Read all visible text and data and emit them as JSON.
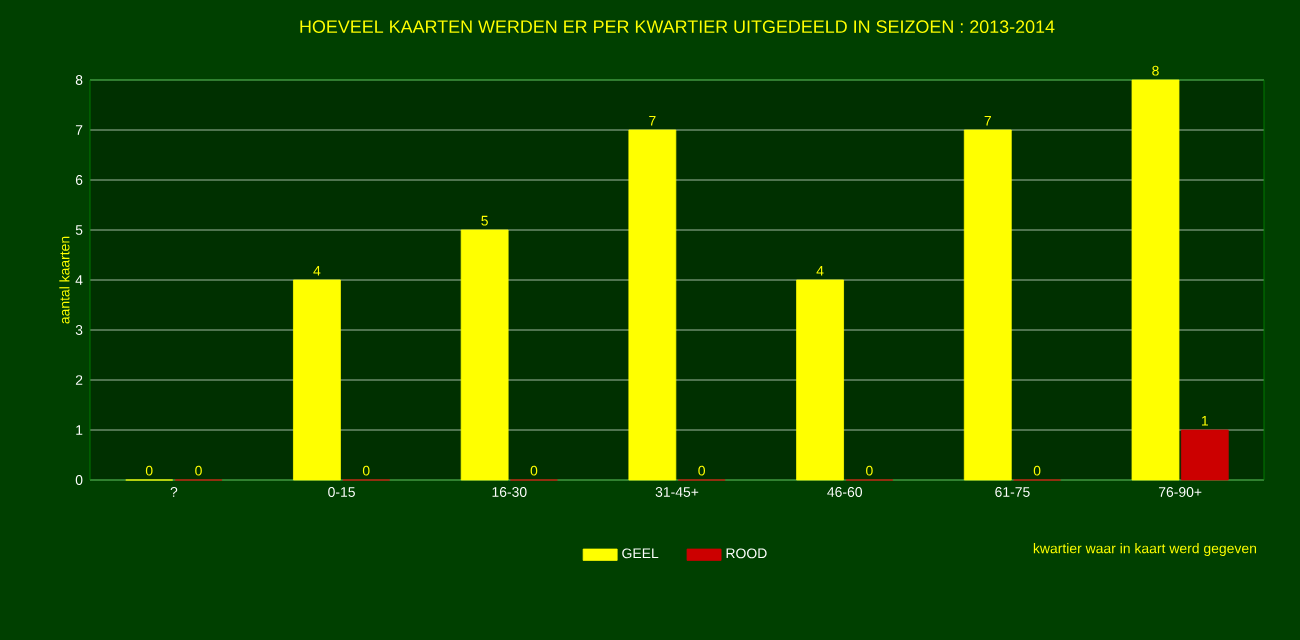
{
  "chart_data": {
    "type": "bar",
    "title": "HOEVEEL KAARTEN WERDEN ER PER KWARTIER UITGEDEELD IN SEIZOEN : 2013-2014",
    "xlabel": "kwartier waar in kaart werd gegeven",
    "ylabel": "aantal kaarten",
    "categories": [
      "?",
      "0-15",
      "16-30",
      "31-45+",
      "46-60",
      "61-75",
      "76-90+"
    ],
    "series": [
      {
        "name": "GEEL",
        "color": "#ffff00",
        "values": [
          0,
          4,
          5,
          7,
          4,
          7,
          8
        ]
      },
      {
        "name": "ROOD",
        "color": "#cc0000",
        "values": [
          0,
          0,
          0,
          0,
          0,
          0,
          1
        ]
      }
    ],
    "ylim": [
      0,
      8
    ],
    "yticks": [
      0,
      1,
      2,
      3,
      4,
      5,
      6,
      7,
      8
    ],
    "grid": "y",
    "legend": "bottom",
    "data_labels": true
  }
}
